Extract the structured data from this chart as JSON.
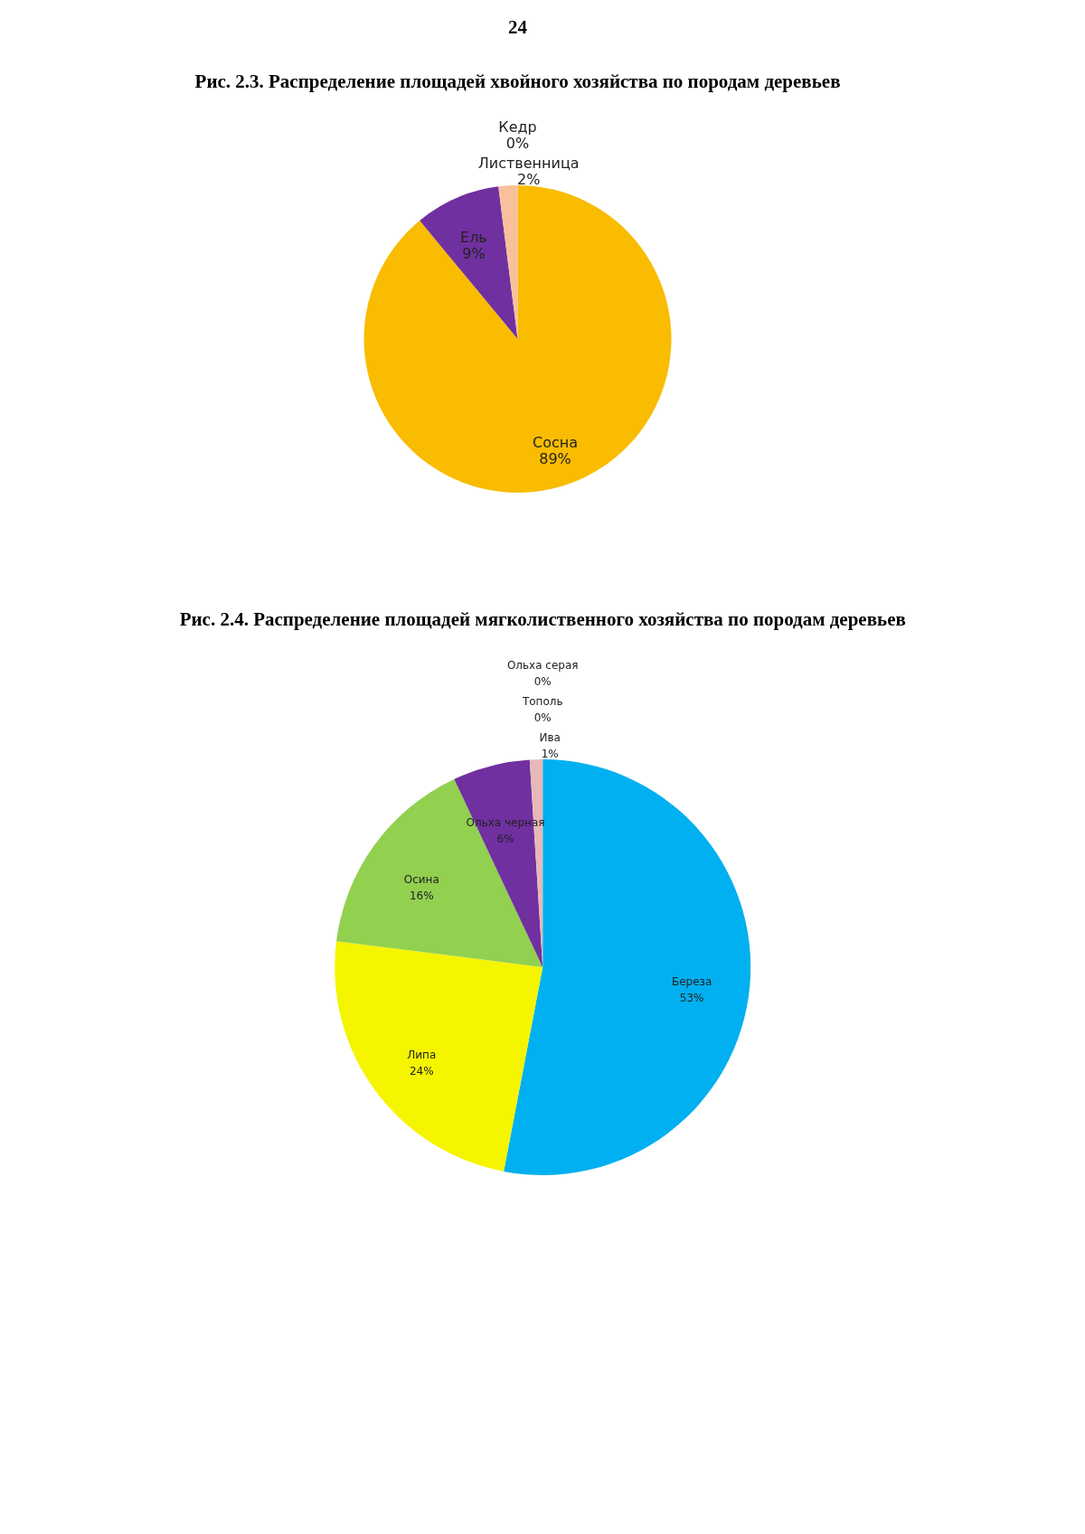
{
  "chart_data": [
    {
      "type": "pie",
      "title": "Рис. 2.3. Распределение площадей хвойного хозяйства по породам деревьев",
      "annotations": [
        "24"
      ],
      "categories": [
        "Сосна",
        "Ель",
        "Лиственница",
        "Кедр"
      ],
      "values": [
        89,
        9,
        2,
        0
      ],
      "value_labels": [
        "89%",
        "9%",
        "2%",
        "0%"
      ],
      "colors": [
        "#f9bc00",
        "#7030a0",
        "#f8c09b",
        "#e03c31"
      ],
      "legend": false
    },
    {
      "type": "pie",
      "title": "Рис. 2.4. Распределение площадей мягколиственного хозяйства по породам деревьев",
      "categories": [
        "Береза",
        "Липа",
        "Осина",
        "Ольха черная",
        "Ива",
        "Тополь",
        "Ольха серая"
      ],
      "values": [
        53,
        24,
        16,
        6,
        1,
        0,
        0
      ],
      "value_labels": [
        "53%",
        "24%",
        "16%",
        "6%",
        "1%",
        "0%",
        "0%"
      ],
      "colors": [
        "#00b0f0",
        "#f5f500",
        "#92d050",
        "#7030a0",
        "#e6b9b8",
        "#00b050",
        "#4f81bd"
      ],
      "legend": false
    }
  ]
}
